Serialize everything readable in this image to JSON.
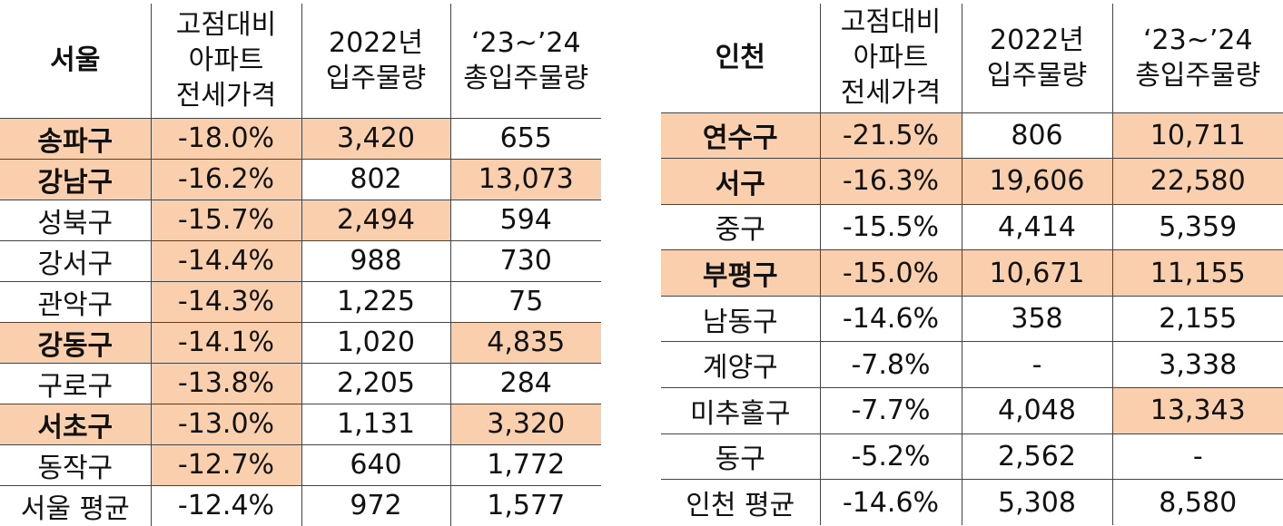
{
  "seoul": {
    "headers": [
      "서울",
      "고점대비\n아파트\n전세가격",
      "2022년\n입주물량",
      "‘23~’24\n총입주물량"
    ],
    "rows": [
      {
        "district": "송파구",
        "bold": true,
        "cells": [
          "-18.0%",
          "3,420",
          "655"
        ],
        "hl": [
          true,
          true,
          true,
          false
        ]
      },
      {
        "district": "강남구",
        "bold": true,
        "cells": [
          "-16.2%",
          "802",
          "13,073"
        ],
        "hl": [
          true,
          true,
          false,
          true
        ]
      },
      {
        "district": "성북구",
        "bold": false,
        "cells": [
          "-15.7%",
          "2,494",
          "594"
        ],
        "hl": [
          false,
          true,
          true,
          false
        ]
      },
      {
        "district": "강서구",
        "bold": false,
        "cells": [
          "-14.4%",
          "988",
          "730"
        ],
        "hl": [
          false,
          true,
          false,
          false
        ]
      },
      {
        "district": "관악구",
        "bold": false,
        "cells": [
          "-14.3%",
          "1,225",
          "75"
        ],
        "hl": [
          false,
          true,
          false,
          false
        ]
      },
      {
        "district": "강동구",
        "bold": true,
        "cells": [
          "-14.1%",
          "1,020",
          "4,835"
        ],
        "hl": [
          true,
          true,
          false,
          true
        ]
      },
      {
        "district": "구로구",
        "bold": false,
        "cells": [
          "-13.8%",
          "2,205",
          "284"
        ],
        "hl": [
          false,
          true,
          false,
          false
        ]
      },
      {
        "district": "서초구",
        "bold": true,
        "cells": [
          "-13.0%",
          "1,131",
          "3,320"
        ],
        "hl": [
          true,
          true,
          false,
          true
        ]
      },
      {
        "district": "동작구",
        "bold": false,
        "cells": [
          "-12.7%",
          "640",
          "1,772"
        ],
        "hl": [
          false,
          true,
          false,
          false
        ]
      },
      {
        "district": "서울  평균",
        "bold": false,
        "cells": [
          "-12.4%",
          "972",
          "1,577"
        ],
        "hl": [
          false,
          false,
          false,
          false
        ]
      }
    ]
  },
  "incheon": {
    "headers": [
      "인천",
      "고점대비\n아파트\n전세가격",
      "2022년\n입주물량",
      "‘23~’24\n총입주물량"
    ],
    "rows": [
      {
        "district": "연수구",
        "bold": true,
        "cells": [
          "-21.5%",
          "806",
          "10,711"
        ],
        "hl": [
          true,
          true,
          false,
          true
        ]
      },
      {
        "district": "서구",
        "bold": true,
        "cells": [
          "-16.3%",
          "19,606",
          "22,580"
        ],
        "hl": [
          true,
          true,
          true,
          true
        ]
      },
      {
        "district": "중구",
        "bold": false,
        "cells": [
          "-15.5%",
          "4,414",
          "5,359"
        ],
        "hl": [
          false,
          false,
          false,
          false
        ]
      },
      {
        "district": "부평구",
        "bold": true,
        "cells": [
          "-15.0%",
          "10,671",
          "11,155"
        ],
        "hl": [
          true,
          true,
          true,
          true
        ]
      },
      {
        "district": "남동구",
        "bold": false,
        "cells": [
          "-14.6%",
          "358",
          "2,155"
        ],
        "hl": [
          false,
          false,
          false,
          false
        ]
      },
      {
        "district": "계양구",
        "bold": false,
        "cells": [
          "-7.8%",
          "-",
          "3,338"
        ],
        "hl": [
          false,
          false,
          false,
          false
        ]
      },
      {
        "district": "미추홀구",
        "bold": false,
        "cells": [
          "-7.7%",
          "4,048",
          "13,343"
        ],
        "hl": [
          false,
          false,
          false,
          true
        ]
      },
      {
        "district": "동구",
        "bold": false,
        "cells": [
          "-5.2%",
          "2,562",
          "-"
        ],
        "hl": [
          false,
          false,
          false,
          false
        ]
      },
      {
        "district": "인천  평균",
        "bold": false,
        "cells": [
          "-14.6%",
          "5,308",
          "8,580"
        ],
        "hl": [
          false,
          false,
          false,
          false
        ]
      }
    ]
  },
  "colors": {
    "highlight": "#f9cfad",
    "border": "#444444"
  }
}
